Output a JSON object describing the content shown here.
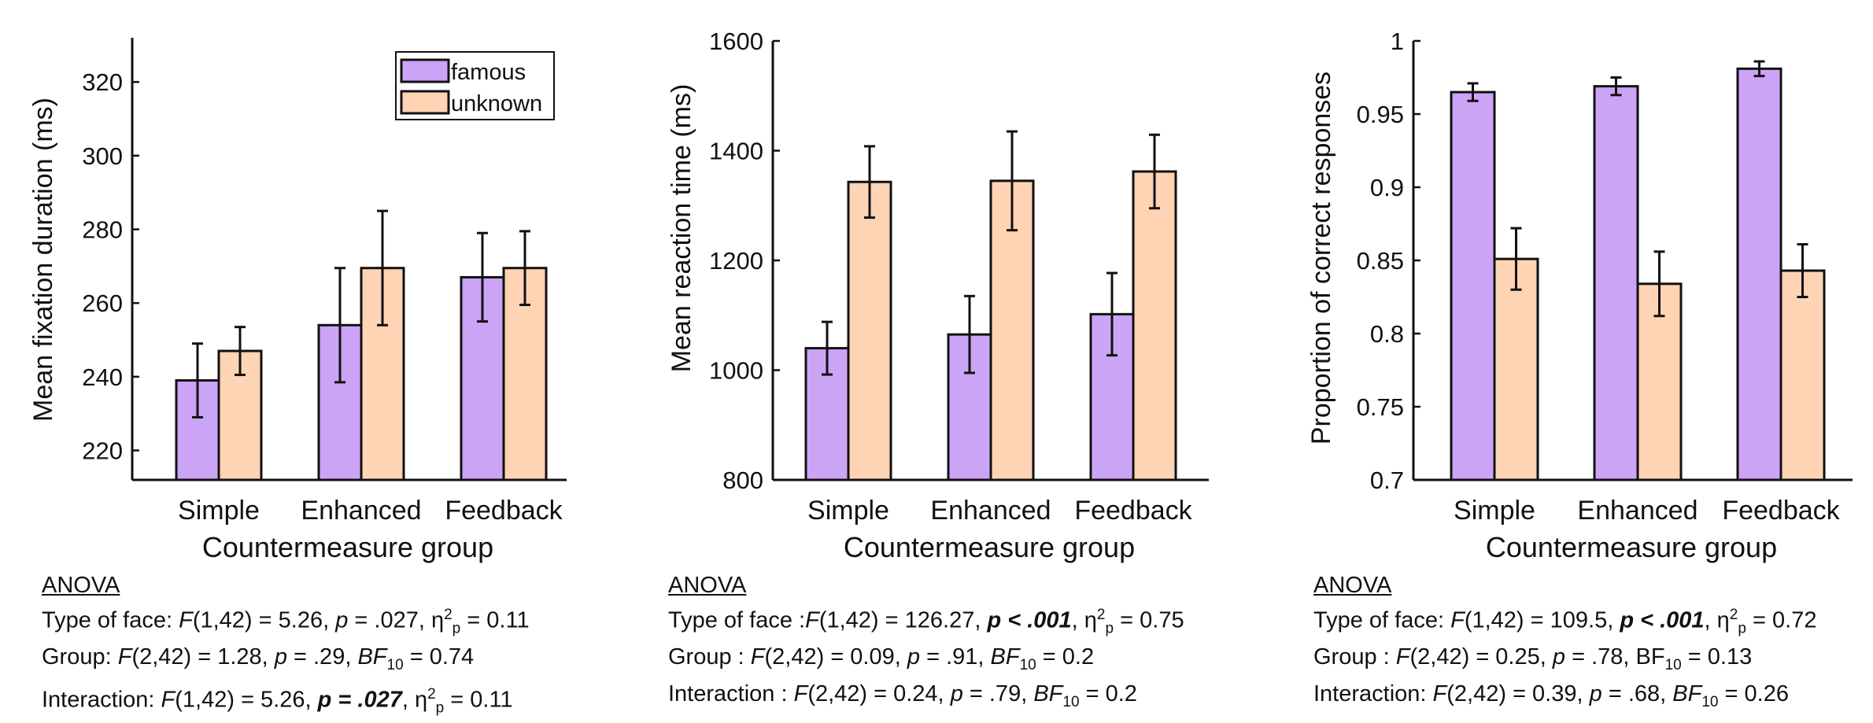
{
  "chart_data": [
    {
      "type": "bar",
      "categories": [
        "Simple",
        "Enhanced",
        "Feedback"
      ],
      "series": [
        {
          "name": "famous",
          "values": [
            239,
            254,
            267
          ],
          "errors": [
            10,
            15.5,
            12
          ]
        },
        {
          "name": "unknown",
          "values": [
            247,
            269.5,
            269.5
          ],
          "errors": [
            6.5,
            15.5,
            10
          ]
        }
      ],
      "xlabel": "Countermeasure group",
      "ylabel": "Mean fixation duration (ms)",
      "ylim": [
        212,
        332
      ],
      "yticks": [
        220,
        240,
        260,
        280,
        300,
        320
      ],
      "yticklabels": [
        "220",
        "240",
        "260",
        "280",
        "300",
        "320"
      ],
      "legend": "top-right"
    },
    {
      "type": "bar",
      "categories": [
        "Simple",
        "Enhanced",
        "Feedback"
      ],
      "series": [
        {
          "name": "famous",
          "values": [
            1040,
            1065,
            1102
          ],
          "errors": [
            48,
            70,
            75
          ]
        },
        {
          "name": "unknown",
          "values": [
            1343,
            1345,
            1362
          ],
          "errors": [
            65,
            90,
            67
          ]
        }
      ],
      "xlabel": "Countermeasure group",
      "ylabel": "Mean reaction time (ms)",
      "ylim": [
        800,
        1600
      ],
      "yticks": [
        800,
        1000,
        1200,
        1400,
        1600
      ],
      "yticklabels": [
        "800",
        "1000",
        "1200",
        "1400",
        "1600"
      ]
    },
    {
      "type": "bar",
      "categories": [
        "Simple",
        "Enhanced",
        "Feedback"
      ],
      "series": [
        {
          "name": "famous",
          "values": [
            0.965,
            0.969,
            0.981
          ],
          "errors": [
            0.006,
            0.006,
            0.005
          ]
        },
        {
          "name": "unknown",
          "values": [
            0.851,
            0.834,
            0.843
          ],
          "errors": [
            0.021,
            0.022,
            0.018
          ]
        }
      ],
      "xlabel": "Countermeasure group",
      "ylabel": "Proportion of correct responses",
      "ylim": [
        0.7,
        1.0
      ],
      "yticks": [
        0.7,
        0.75,
        0.8,
        0.85,
        0.9,
        0.95,
        1.0
      ],
      "yticklabels": [
        "0.7",
        "0.75",
        "0.8",
        "0.85",
        "0.9",
        "0.95",
        "1"
      ]
    }
  ],
  "colors": {
    "famous": "#cca4f6",
    "unknown": "#fed4b4",
    "axis": "#111111"
  },
  "anova": [
    {
      "heading": "ANOVA",
      "line1": {
        "a": "Type of face: ",
        "b": "F",
        "c": "(1,42) = 5.26, ",
        "d": "p",
        "e": " = .027, η",
        "f": "2",
        "g": "p",
        "h": " = 0.11"
      },
      "line2": {
        "a": "Group: ",
        "b": "F",
        "c": "(2,42) = 1.28, ",
        "d": "p",
        "e": " = .29, ",
        "f": "BF",
        "g": "10",
        "h": " = 0.74"
      },
      "line3": {
        "a": "Interaction: ",
        "b": "F",
        "c": "(1,42) = 5.26, ",
        "d": "p =  .027",
        "e": ", η",
        "f": "2",
        "g": "p",
        "h": " = 0.11"
      }
    },
    {
      "heading": "ANOVA",
      "line1": {
        "a": "Type of face :",
        "b": "F",
        "c": "(1,42) = 126.27, ",
        "d": "p < .001",
        "e": ", η",
        "f": "2",
        "g": "p",
        "h": " = 0.75"
      },
      "line2": {
        "a": "Group : ",
        "b": "F",
        "c": "(2,42) = 0.09, ",
        "d": "p",
        "e": " = .91, ",
        "f": "BF",
        "g": "10",
        "h": " = 0.2"
      },
      "line3": {
        "a": "Interaction : ",
        "b": "F",
        "c": "(2,42) = 0.24, ",
        "d": "p",
        "e": " = .79, ",
        "f": "BF",
        "g": "10",
        "h": " = 0.2"
      }
    },
    {
      "heading": "ANOVA",
      "line1": {
        "a": "Type of face: ",
        "b": "F",
        "c": "(1,42) = 109.5, ",
        "d": "p < .001",
        "e": ", η",
        "f": "2",
        "g": "p",
        "h": " = 0.72"
      },
      "line2": {
        "a": "Group : ",
        "b": "F",
        "c": "(2,42) = 0.25, ",
        "d": "p",
        "e": " = .78, ",
        "f": "BF",
        "g": "10",
        "h": " = 0.13"
      },
      "line3": {
        "a": "Interaction: ",
        "b": "F",
        "c": "(2,42) = 0.39, ",
        "d": "p",
        "e": " = .68, ",
        "f": "BF",
        "g": "10",
        "h": " = 0.26"
      }
    }
  ]
}
